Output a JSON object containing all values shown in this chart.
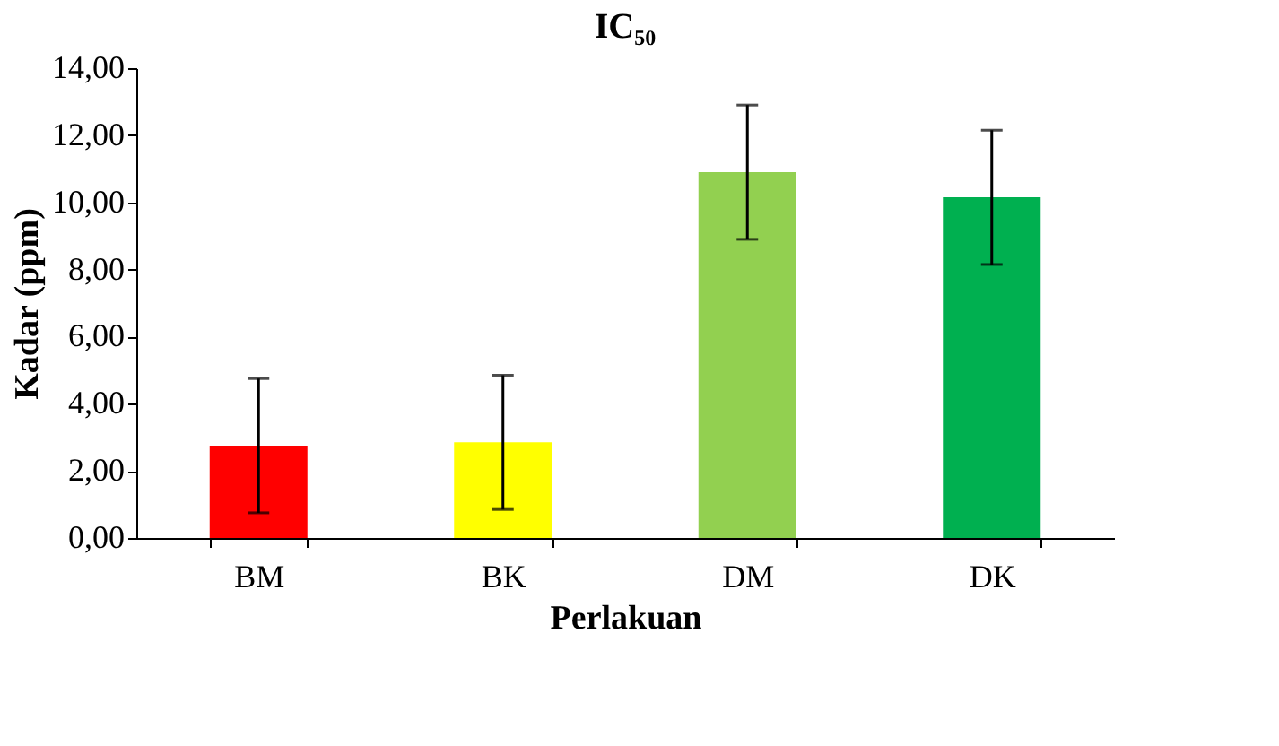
{
  "chart_data": {
    "type": "bar",
    "title": "IC₅₀",
    "xlabel": "Perlakuan",
    "ylabel": "Kadar (ppm)",
    "categories": [
      "BM",
      "BK",
      "DM",
      "DK"
    ],
    "values": [
      2.75,
      2.85,
      10.9,
      10.15
    ],
    "colors": [
      "#ff0000",
      "#ffff00",
      "#92d050",
      "#00b050"
    ],
    "errors": [
      2.0,
      2.0,
      2.0,
      2.0
    ],
    "ylim": [
      0,
      14
    ],
    "yticks": [
      {
        "value": 0,
        "label": "0,00"
      },
      {
        "value": 2,
        "label": "2,00"
      },
      {
        "value": 4,
        "label": "4,00"
      },
      {
        "value": 6,
        "label": "6,00"
      },
      {
        "value": 8,
        "label": "8,00"
      },
      {
        "value": 10,
        "label": "10,00"
      },
      {
        "value": 12,
        "label": "12,00"
      },
      {
        "value": 14,
        "label": "14,00"
      }
    ],
    "grid": false
  }
}
